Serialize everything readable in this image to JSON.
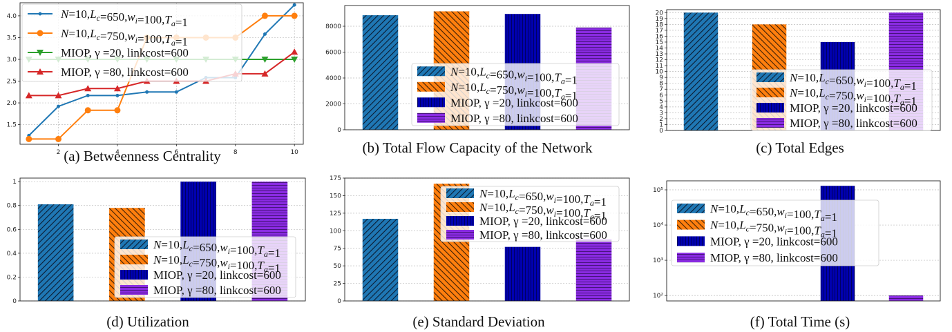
{
  "legend_labels": [
    "N=10,Lc=650,wi=100,Ta=1",
    "N=10,Lc=750,wi=100,Ta=1",
    "MIOP, γ =20, linkcost=600",
    "MIOP, γ =80, linkcost=600"
  ],
  "colors": {
    "blue": "#1f77b4",
    "orange": "#ff7f0e",
    "green": "#2ca02c",
    "red": "#d62728",
    "navy": "#0000a0",
    "purple": "#8a2be2"
  },
  "chart_data": [
    {
      "type": "line",
      "caption": "(a) Betweenness Centrality",
      "x": [
        1,
        2,
        3,
        4,
        5,
        6,
        7,
        8,
        9,
        10
      ],
      "xticks": [
        2,
        4,
        6,
        8,
        10
      ],
      "ylim": [
        1.05,
        4.3
      ],
      "yticks": [
        1.5,
        2.0,
        2.5,
        3.0,
        3.5,
        4.0
      ],
      "grid": true,
      "legend_position": "top-left",
      "series": [
        {
          "name": "N=10,Lc=650,wi=100,Ta=1",
          "marker": "dot",
          "color": "#1f77b4",
          "values": [
            1.25,
            1.92,
            2.17,
            2.17,
            2.25,
            2.25,
            2.58,
            2.58,
            3.58,
            4.25
          ]
        },
        {
          "name": "N=10,Lc=750,wi=100,Ta=1",
          "marker": "circle",
          "color": "#ff7f0e",
          "values": [
            1.17,
            1.17,
            1.83,
            1.83,
            3.5,
            3.5,
            3.5,
            3.5,
            4.0,
            4.0
          ]
        },
        {
          "name": "MIOP, γ =20, linkcost=600",
          "marker": "triangle-down",
          "color": "#2ca02c",
          "values": [
            3.0,
            3.0,
            3.0,
            3.0,
            3.0,
            3.0,
            3.0,
            3.0,
            3.0,
            3.0
          ]
        },
        {
          "name": "MIOP, γ =80, linkcost=600",
          "marker": "triangle-up",
          "color": "#d62728",
          "values": [
            2.17,
            2.17,
            2.33,
            2.33,
            2.5,
            2.5,
            2.5,
            2.67,
            2.67,
            3.17
          ]
        }
      ]
    },
    {
      "type": "bar",
      "caption": "(b) Total Flow Capacity of the Network",
      "categories": [
        "N=10,Lc=650,wi=100,Ta=1",
        "N=10,Lc=750,wi=100,Ta=1",
        "MIOP, γ =20, linkcost=600",
        "MIOP, γ =80, linkcost=600"
      ],
      "values": [
        8850,
        9150,
        8950,
        7900
      ],
      "ylim": [
        0,
        9600
      ],
      "yticks": [
        0,
        2000,
        4000,
        6000,
        8000
      ],
      "scale": "linear",
      "legend_position": "center-right"
    },
    {
      "type": "bar",
      "caption": "(c) Total Edges",
      "categories": [
        "N=10,Lc=650,wi=100,Ta=1",
        "N=10,Lc=750,wi=100,Ta=1",
        "MIOP, γ =20, linkcost=600",
        "MIOP, γ =80, linkcost=600"
      ],
      "values": [
        20,
        18,
        15,
        20
      ],
      "ylim": [
        0,
        20.5
      ],
      "yticks": [
        0,
        1,
        2,
        3,
        4,
        5,
        6,
        7,
        8,
        9,
        10,
        11,
        12,
        13,
        14,
        15,
        16,
        17,
        18,
        19,
        20
      ],
      "scale": "linear",
      "legend_position": "lower-right"
    },
    {
      "type": "bar",
      "caption": "(d) Utilization",
      "categories": [
        "N=10,Lc=650,wi=100,Ta=1",
        "N=10,Lc=750,wi=100,Ta=1",
        "MIOP, γ =20, linkcost=600",
        "MIOP, γ =80, linkcost=600"
      ],
      "values": [
        0.81,
        0.78,
        1.0,
        1.0
      ],
      "ylim": [
        0,
        1.03
      ],
      "yticks": [
        0.0,
        0.2,
        0.4,
        0.6,
        0.8,
        1.0
      ],
      "scale": "linear",
      "legend_position": "lower-right"
    },
    {
      "type": "bar",
      "caption": "(e) Standard Deviation",
      "categories": [
        "N=10,Lc=650,wi=100,Ta=1",
        "N=10,Lc=750,wi=100,Ta=1",
        "MIOP, γ =20, linkcost=600",
        "MIOP, γ =80, linkcost=600"
      ],
      "values": [
        117,
        167,
        77,
        88
      ],
      "ylim": [
        0,
        175
      ],
      "yticks": [
        0,
        25,
        50,
        75,
        100,
        125,
        150,
        175
      ],
      "scale": "linear",
      "legend_position": "upper-right"
    },
    {
      "type": "bar",
      "caption": "(f) Total Time (s)",
      "categories": [
        "N=10,Lc=650,wi=100,Ta=1",
        "N=10,Lc=750,wi=100,Ta=1",
        "MIOP, γ =20, linkcost=600",
        "MIOP, γ =80, linkcost=600"
      ],
      "values": [
        null,
        null,
        130000,
        100
      ],
      "ylim": [
        70,
        180000
      ],
      "yticks": [
        100,
        1000,
        10000,
        100000
      ],
      "ytick_labels": [
        "10²",
        "10³",
        "10⁴",
        "10⁵"
      ],
      "scale": "log",
      "legend_position": "upper-left"
    }
  ]
}
